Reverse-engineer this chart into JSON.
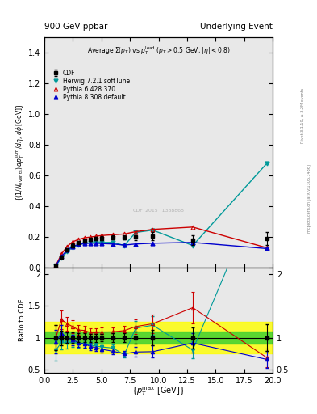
{
  "title_top": "900 GeV ppbar",
  "title_top_right": "Underlying Event",
  "plot_title": "Average Σ(p_T) vs p_T^{lead} (p_T > 0.5 GeV, |η| < 0.8)",
  "ylabel_main": "{(1/N_{events}) dp_T^{sum}/dη, dφ [GeV]}",
  "ylabel_ratio": "Ratio to CDF",
  "xlabel": "{p_T^{max} [GeV]}",
  "watermark": "CDF_2015_I1388868",
  "rivet_text": "Rivet 3.1.10, ≥ 3.2M events",
  "arxiv_text": "mcplots.cern.ch [arXiv:1306.3436]",
  "cdf_x": [
    1.0,
    1.5,
    2.0,
    2.5,
    3.0,
    3.5,
    4.0,
    4.5,
    5.0,
    6.0,
    7.0,
    8.0,
    9.5,
    13.0,
    19.5
  ],
  "cdf_y": [
    0.015,
    0.07,
    0.115,
    0.145,
    0.165,
    0.175,
    0.185,
    0.19,
    0.193,
    0.197,
    0.198,
    0.2,
    0.205,
    0.18,
    0.19
  ],
  "cdf_yerr": [
    0.003,
    0.008,
    0.01,
    0.012,
    0.012,
    0.012,
    0.012,
    0.012,
    0.012,
    0.013,
    0.013,
    0.02,
    0.025,
    0.03,
    0.04
  ],
  "herwig_x": [
    1.0,
    1.5,
    2.0,
    2.5,
    3.0,
    3.5,
    4.0,
    4.5,
    5.0,
    6.0,
    7.0,
    8.0,
    9.5,
    13.0,
    19.5
  ],
  "herwig_y": [
    0.012,
    0.065,
    0.105,
    0.135,
    0.15,
    0.158,
    0.163,
    0.165,
    0.165,
    0.165,
    0.145,
    0.23,
    0.245,
    0.145,
    0.68
  ],
  "herwig_color": "#009999",
  "pythia6_x": [
    1.0,
    1.5,
    2.0,
    2.5,
    3.0,
    3.5,
    4.0,
    4.5,
    5.0,
    6.0,
    7.0,
    8.0,
    9.5,
    13.0,
    19.5
  ],
  "pythia6_y": [
    0.015,
    0.09,
    0.14,
    0.17,
    0.185,
    0.195,
    0.2,
    0.205,
    0.21,
    0.215,
    0.22,
    0.235,
    0.25,
    0.265,
    0.13
  ],
  "pythia6_color": "#cc0000",
  "pythia8_x": [
    1.0,
    1.5,
    2.0,
    2.5,
    3.0,
    3.5,
    4.0,
    4.5,
    5.0,
    6.0,
    7.0,
    8.0,
    9.5,
    13.0,
    19.5
  ],
  "pythia8_y": [
    0.014,
    0.075,
    0.115,
    0.14,
    0.152,
    0.158,
    0.16,
    0.16,
    0.158,
    0.155,
    0.148,
    0.155,
    0.16,
    0.165,
    0.125
  ],
  "pythia8_color": "#0000cc",
  "ylim_main": [
    0,
    1.5
  ],
  "ylim_ratio": [
    0.45,
    2.1
  ],
  "xlim": [
    0,
    20
  ],
  "green_band": [
    0.9,
    1.1
  ],
  "yellow_band": [
    0.75,
    1.25
  ],
  "bg_color": "#e8e8e8"
}
